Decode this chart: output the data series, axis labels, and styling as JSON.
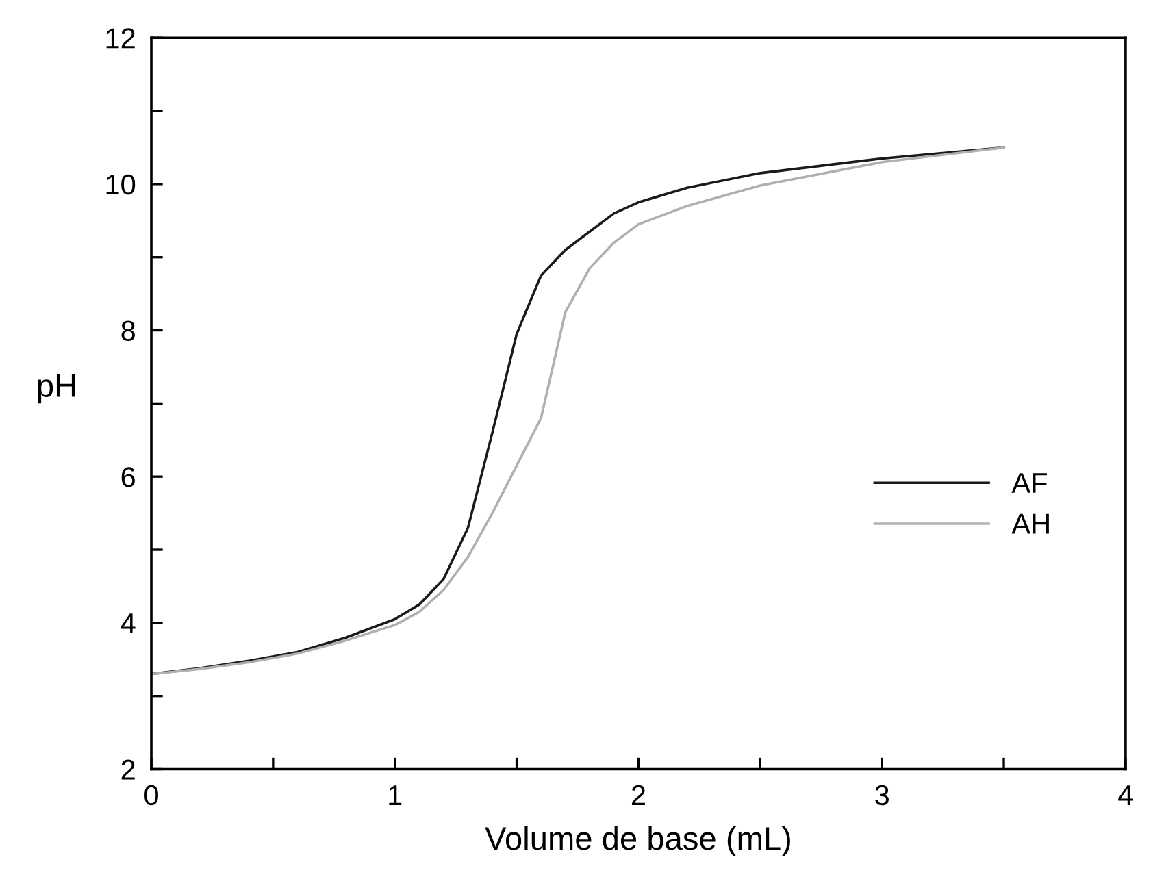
{
  "chart_data": {
    "type": "line",
    "xlabel": "Volume de base (mL)",
    "ylabel": "pH",
    "xlim": [
      0,
      4
    ],
    "ylim": [
      2,
      12
    ],
    "xticks": [
      0,
      {
        "value": 0.5,
        "label": null
      },
      1,
      {
        "value": 1.5,
        "label": null
      },
      2,
      {
        "value": 2.5,
        "label": null
      },
      3,
      {
        "value": 3.5,
        "label": null
      },
      4
    ],
    "yticks": [
      2,
      {
        "value": 3,
        "label": null
      },
      4,
      {
        "value": 5,
        "label": null
      },
      6,
      {
        "value": 7,
        "label": null
      },
      8,
      {
        "value": 9,
        "label": null
      },
      10,
      {
        "value": 11,
        "label": null
      },
      12
    ],
    "x": [
      0,
      0.2,
      0.4,
      0.6,
      0.8,
      1.0,
      1.1,
      1.2,
      1.3,
      1.4,
      1.5,
      1.6,
      1.7,
      1.8,
      1.9,
      2.0,
      2.2,
      2.5,
      3.0,
      3.5
    ],
    "series": [
      {
        "name": "AF",
        "color": "#1a1a1a",
        "values": [
          3.3,
          3.38,
          3.48,
          3.6,
          3.8,
          4.05,
          4.25,
          4.6,
          5.3,
          6.6,
          7.95,
          8.75,
          9.1,
          9.35,
          9.6,
          9.75,
          9.95,
          10.15,
          10.35,
          10.5
        ]
      },
      {
        "name": "AH",
        "color": "#b0b0b0",
        "values": [
          3.3,
          3.37,
          3.46,
          3.58,
          3.76,
          3.97,
          4.15,
          4.45,
          4.9,
          5.5,
          6.15,
          6.8,
          8.25,
          8.85,
          9.2,
          9.45,
          9.7,
          9.98,
          10.3,
          10.5
        ]
      }
    ],
    "legend": "center right",
    "grid": false,
    "marker": "none",
    "line_style": "solid"
  }
}
